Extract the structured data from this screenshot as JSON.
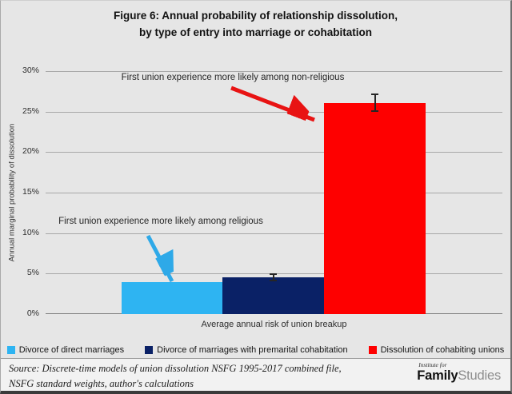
{
  "figure": {
    "title_line1": "Figure 6: Annual probability of relationship dissolution,",
    "title_line2": "by type of entry into marriage or cohabitation"
  },
  "chart_data": {
    "type": "bar",
    "title": "Figure 6: Annual probability of relationship dissolution, by type of entry into marriage or cohabitation",
    "xlabel": "Average annual risk of union breakup",
    "ylabel": "Annual marginal probability of dissolution",
    "categories": [
      "Divorce of direct marriages",
      "Divorce of marriages with premarital cohabitation",
      "Dissolution of cohabiting unions"
    ],
    "values": [
      3.9,
      4.5,
      26.1
    ],
    "error_bars": [
      0,
      0.5,
      1.1
    ],
    "bar_colors": [
      "#2EB4F2",
      "#0A2166",
      "#FE0000"
    ],
    "ylim": [
      0,
      30
    ],
    "ytick_step": 5,
    "ytick_labels": [
      "0%",
      "5%",
      "10%",
      "15%",
      "20%",
      "25%",
      "30%"
    ],
    "grid": true,
    "legend_position": "bottom",
    "annotations": [
      {
        "text": "First union experience more likely among non-religious",
        "color": "#E81313",
        "target": "Dissolution of cohabiting unions"
      },
      {
        "text": "First union experience more likely among religious",
        "color": "#2EA9E8",
        "target": "Divorce of direct marriages"
      }
    ]
  },
  "legend": {
    "items": [
      {
        "label": "Divorce of direct marriages",
        "color": "#2EB4F2"
      },
      {
        "label": "Divorce of marriages with premarital cohabitation",
        "color": "#0A2166"
      },
      {
        "label": "Dissolution of cohabiting unions",
        "color": "#FE0000"
      }
    ]
  },
  "footer": {
    "source_line1": "Source: Discrete-time models of union dissolution NSFG 1995-2017 combined file,",
    "source_line2": "NSFG standard weights, author's calculations",
    "logo": {
      "top": "Institute for",
      "name_bold": "Family",
      "name_light": "Studies"
    }
  }
}
